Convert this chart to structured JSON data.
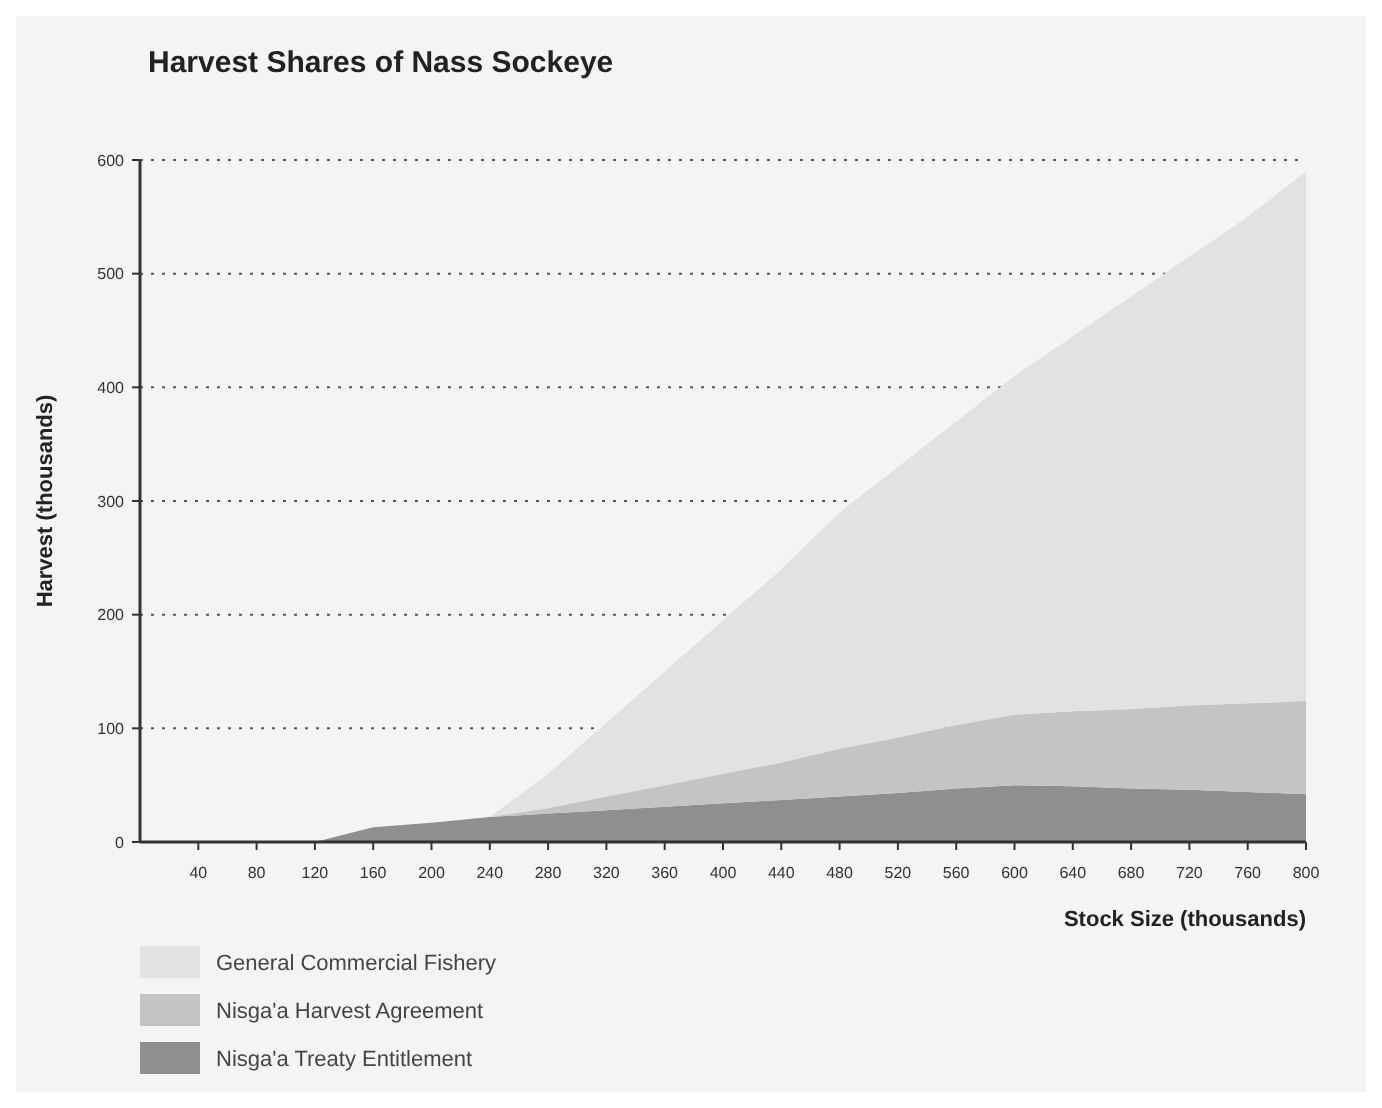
{
  "chart_data": {
    "type": "area",
    "stacked": true,
    "title": "Harvest Shares of Nass Sockeye",
    "xlabel": "Stock Size (thousands)",
    "ylabel": "Harvest (thousands)",
    "x": [
      120,
      160,
      200,
      240,
      280,
      320,
      360,
      400,
      440,
      480,
      520,
      560,
      600,
      640,
      680,
      720,
      760,
      800
    ],
    "series": [
      {
        "name": "Nisga'a Treaty Entitlement",
        "color": "#8f8f8f",
        "values": [
          0,
          13,
          17,
          22,
          25,
          28,
          31,
          34,
          37,
          40,
          43,
          47,
          50,
          49,
          47,
          46,
          44,
          42
        ]
      },
      {
        "name": "Nisga'a Harvest Agreement",
        "color": "#c4c4c4",
        "values": [
          0,
          0,
          0,
          0,
          5,
          12,
          19,
          26,
          33,
          42,
          49,
          56,
          62,
          66,
          70,
          74,
          78,
          82
        ]
      },
      {
        "name": "General Commercial Fishery",
        "color": "#e2e2e2",
        "values": [
          0,
          0,
          0,
          0,
          30,
          65,
          100,
          135,
          170,
          208,
          238,
          267,
          298,
          330,
          363,
          395,
          428,
          466
        ]
      }
    ],
    "xlim": [
      0,
      800
    ],
    "xticks": [
      40,
      80,
      120,
      160,
      200,
      240,
      280,
      320,
      360,
      400,
      440,
      480,
      520,
      560,
      600,
      640,
      680,
      720,
      760,
      800
    ],
    "ylim": [
      0,
      600
    ],
    "yticks": [
      0,
      100,
      200,
      300,
      400,
      500,
      600
    ],
    "grid": "y",
    "legend": "bottom left"
  }
}
